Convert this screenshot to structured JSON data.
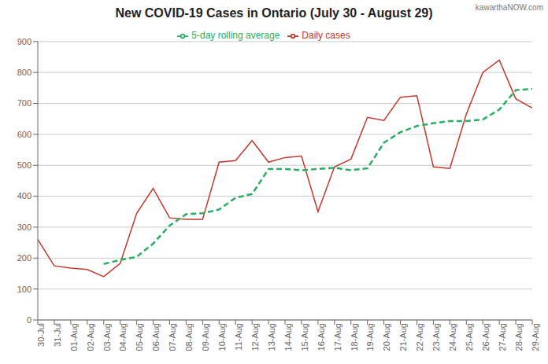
{
  "chart_data": {
    "type": "line",
    "title": "New COVID-19 Cases in Ontario (July 30 - August 29)",
    "categories": [
      "30-Jul",
      "31-Jul",
      "01-Aug",
      "02-Aug",
      "03-Aug",
      "04-Aug",
      "05-Aug",
      "06-Aug",
      "07-Aug",
      "08-Aug",
      "09-Aug",
      "10-Aug",
      "11-Aug",
      "12-Aug",
      "13-Aug",
      "14-Aug",
      "15-Aug",
      "16-Aug",
      "17-Aug",
      "18-Aug",
      "19-Aug",
      "20-Aug",
      "21-Aug",
      "22-Aug",
      "23-Aug",
      "24-Aug",
      "25-Aug",
      "26-Aug",
      "27-Aug",
      "28-Aug",
      "29-Aug"
    ],
    "series": [
      {
        "name": "Daily cases",
        "color": "#c0392b",
        "line_style": "solid",
        "values": [
          260,
          175,
          168,
          163,
          140,
          183,
          345,
          425,
          330,
          325,
          325,
          510,
          515,
          580,
          510,
          525,
          530,
          350,
          495,
          520,
          655,
          645,
          720,
          725,
          495,
          490,
          665,
          800,
          840,
          715,
          685
        ]
      },
      {
        "name": "5-day rolling average",
        "color": "#27ae60",
        "line_style": "dashed",
        "values": [
          null,
          null,
          null,
          null,
          181,
          194,
          204,
          247,
          305,
          342,
          345,
          357,
          395,
          407,
          488,
          488,
          484,
          488,
          492,
          484,
          490,
          573,
          607,
          627,
          636,
          643,
          643,
          648,
          680,
          743,
          747
        ]
      }
    ],
    "ylim": [
      0,
      900
    ],
    "yticks": [
      0,
      100,
      200,
      300,
      400,
      500,
      600,
      700,
      800,
      900
    ],
    "grid": true,
    "legend": "top",
    "annotations": [
      "kawarthaNOW.com"
    ]
  }
}
